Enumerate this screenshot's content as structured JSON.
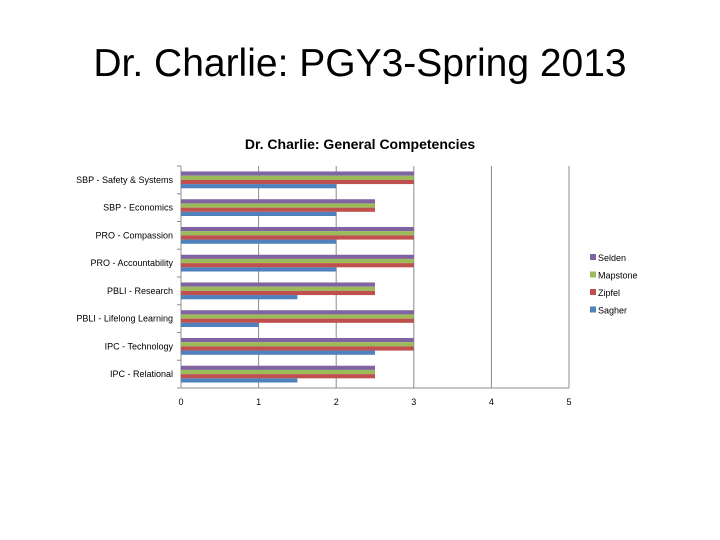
{
  "slide": {
    "title": "Dr. Charlie: PGY3-Spring 2013"
  },
  "chart_data": {
    "type": "bar",
    "orientation": "horizontal",
    "title": "Dr. Charlie: General Competencies",
    "xlabel": "",
    "ylabel": "",
    "xlim": [
      0,
      5
    ],
    "xticks": [
      0,
      1,
      2,
      3,
      4,
      5
    ],
    "grid": true,
    "legend_position": "right",
    "categories": [
      "SBP - Safety & Systems",
      "SBP - Economics",
      "PRO - Compassion",
      "PRO - Accountability",
      "PBLI - Research",
      "PBLI - Lifelong Learning",
      "IPC - Technology",
      "IPC - Relational"
    ],
    "series": [
      {
        "name": "Selden",
        "color": "#8064a2",
        "values": [
          3,
          2.5,
          3,
          3,
          2.5,
          3,
          3,
          2.5
        ]
      },
      {
        "name": "Mapstone",
        "color": "#9bbb59",
        "values": [
          3,
          2.5,
          3,
          3,
          2.5,
          3,
          3,
          2.5
        ]
      },
      {
        "name": "Zipfel",
        "color": "#c0504d",
        "values": [
          3,
          2.5,
          3,
          3,
          2.5,
          3,
          3,
          2.5
        ]
      },
      {
        "name": "Sagher",
        "color": "#4f81bd",
        "values": [
          2,
          2,
          2,
          2,
          1.5,
          1,
          2.5,
          1.5
        ]
      }
    ]
  }
}
